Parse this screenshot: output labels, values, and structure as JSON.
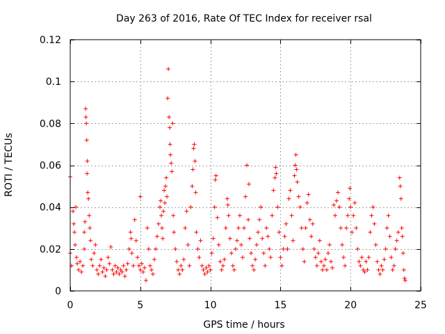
{
  "chart_data": {
    "type": "scatter",
    "title": "Day 263 of 2016, Rate Of TEC Index for receiver rsal",
    "xlabel": "GPS time / hours",
    "ylabel": "ROTI / TECUs",
    "xlim": [
      0,
      25
    ],
    "ylim": [
      0,
      0.12
    ],
    "x_ticks": [
      0,
      5,
      10,
      15,
      20,
      25
    ],
    "x_tick_labels": [
      "0",
      "5",
      "10",
      "15",
      "20",
      "25"
    ],
    "y_ticks": [
      0,
      0.02,
      0.04,
      0.06,
      0.08,
      0.1,
      0.12
    ],
    "y_tick_labels": [
      "0",
      "0.02",
      "0.04",
      "0.06",
      "0.08",
      "0.1",
      "0.12"
    ],
    "grid": true,
    "legend": "none",
    "marker": "plus",
    "series_color": "#ff0000",
    "series": [
      {
        "name": "ROTI",
        "points": [
          [
            0.0,
            0.0545
          ],
          [
            0.0,
            0.018
          ],
          [
            0.1,
            0.012
          ],
          [
            0.2,
            0.038
          ],
          [
            0.25,
            0.032
          ],
          [
            0.3,
            0.028
          ],
          [
            0.35,
            0.022
          ],
          [
            0.4,
            0.04
          ],
          [
            0.45,
            0.016
          ],
          [
            0.5,
            0.013
          ],
          [
            0.6,
            0.01
          ],
          [
            0.7,
            0.014
          ],
          [
            0.8,
            0.009
          ],
          [
            0.9,
            0.012
          ],
          [
            1.0,
            0.02
          ],
          [
            1.0,
            0.028
          ],
          [
            1.05,
            0.033
          ],
          [
            1.1,
            0.087
          ],
          [
            1.12,
            0.083
          ],
          [
            1.15,
            0.08
          ],
          [
            1.18,
            0.072
          ],
          [
            1.2,
            0.056
          ],
          [
            1.22,
            0.062
          ],
          [
            1.25,
            0.047
          ],
          [
            1.3,
            0.044
          ],
          [
            1.35,
            0.036
          ],
          [
            1.4,
            0.03
          ],
          [
            1.45,
            0.024
          ],
          [
            1.5,
            0.015
          ],
          [
            1.6,
            0.012
          ],
          [
            1.7,
            0.018
          ],
          [
            1.8,
            0.022
          ],
          [
            1.9,
            0.01
          ],
          [
            2.0,
            0.008
          ],
          [
            2.1,
            0.012
          ],
          [
            2.2,
            0.015
          ],
          [
            2.3,
            0.009
          ],
          [
            2.4,
            0.011
          ],
          [
            2.5,
            0.007
          ],
          [
            2.6,
            0.01
          ],
          [
            2.7,
            0.016
          ],
          [
            2.8,
            0.013
          ],
          [
            2.9,
            0.021
          ],
          [
            3.0,
            0.01
          ],
          [
            3.1,
            0.008
          ],
          [
            3.2,
            0.012
          ],
          [
            3.3,
            0.009
          ],
          [
            3.4,
            0.011
          ],
          [
            3.5,
            0.008
          ],
          [
            3.6,
            0.01
          ],
          [
            3.7,
            0.009
          ],
          [
            3.8,
            0.012
          ],
          [
            3.9,
            0.007
          ],
          [
            4.0,
            0.01
          ],
          [
            4.1,
            0.013
          ],
          [
            4.2,
            0.02
          ],
          [
            4.3,
            0.028
          ],
          [
            4.35,
            0.025
          ],
          [
            4.4,
            0.018
          ],
          [
            4.5,
            0.012
          ],
          [
            4.6,
            0.034
          ],
          [
            4.7,
            0.024
          ],
          [
            4.8,
            0.016
          ],
          [
            4.9,
            0.012
          ],
          [
            5.0,
            0.01
          ],
          [
            5.0,
            0.045
          ],
          [
            5.1,
            0.013
          ],
          [
            5.2,
            0.009
          ],
          [
            5.3,
            0.011
          ],
          [
            5.4,
            0.005
          ],
          [
            5.5,
            0.03
          ],
          [
            5.6,
            0.02
          ],
          [
            5.7,
            0.012
          ],
          [
            5.8,
            0.01
          ],
          [
            5.9,
            0.008
          ],
          [
            6.0,
            0.015
          ],
          [
            6.1,
            0.02
          ],
          [
            6.2,
            0.026
          ],
          [
            6.3,
            0.032
          ],
          [
            6.4,
            0.04
          ],
          [
            6.45,
            0.043
          ],
          [
            6.5,
            0.036
          ],
          [
            6.55,
            0.03
          ],
          [
            6.6,
            0.025
          ],
          [
            6.65,
            0.038
          ],
          [
            6.7,
            0.048
          ],
          [
            6.75,
            0.042
          ],
          [
            6.8,
            0.05
          ],
          [
            6.85,
            0.054
          ],
          [
            6.9,
            0.045
          ],
          [
            6.95,
            0.092
          ],
          [
            7.0,
            0.106
          ],
          [
            7.05,
            0.083
          ],
          [
            7.1,
            0.078
          ],
          [
            7.12,
            0.07
          ],
          [
            7.15,
            0.065
          ],
          [
            7.2,
            0.061
          ],
          [
            7.25,
            0.057
          ],
          [
            7.3,
            0.08
          ],
          [
            7.35,
            0.036
          ],
          [
            7.4,
            0.028
          ],
          [
            7.5,
            0.02
          ],
          [
            7.6,
            0.014
          ],
          [
            7.7,
            0.01
          ],
          [
            7.8,
            0.008
          ],
          [
            7.9,
            0.012
          ],
          [
            8.0,
            0.01
          ],
          [
            8.1,
            0.015
          ],
          [
            8.2,
            0.03
          ],
          [
            8.3,
            0.038
          ],
          [
            8.4,
            0.022
          ],
          [
            8.5,
            0.012
          ],
          [
            8.6,
            0.04
          ],
          [
            8.7,
            0.05
          ],
          [
            8.75,
            0.058
          ],
          [
            8.8,
            0.068
          ],
          [
            8.85,
            0.07
          ],
          [
            8.9,
            0.062
          ],
          [
            8.95,
            0.047
          ],
          [
            9.0,
            0.028
          ],
          [
            9.1,
            0.02
          ],
          [
            9.2,
            0.016
          ],
          [
            9.3,
            0.024
          ],
          [
            9.4,
            0.012
          ],
          [
            9.5,
            0.01
          ],
          [
            9.6,
            0.008
          ],
          [
            9.7,
            0.011
          ],
          [
            9.8,
            0.009
          ],
          [
            9.9,
            0.012
          ],
          [
            10.0,
            0.01
          ],
          [
            10.1,
            0.018
          ],
          [
            10.2,
            0.025
          ],
          [
            10.3,
            0.04
          ],
          [
            10.35,
            0.053
          ],
          [
            10.4,
            0.055
          ],
          [
            10.5,
            0.035
          ],
          [
            10.6,
            0.022
          ],
          [
            10.7,
            0.014
          ],
          [
            10.8,
            0.01
          ],
          [
            10.9,
            0.012
          ],
          [
            11.0,
            0.015
          ],
          [
            11.1,
            0.03
          ],
          [
            11.2,
            0.044
          ],
          [
            11.25,
            0.041
          ],
          [
            11.3,
            0.036
          ],
          [
            11.4,
            0.025
          ],
          [
            11.5,
            0.018
          ],
          [
            11.6,
            0.012
          ],
          [
            11.7,
            0.01
          ],
          [
            11.8,
            0.02
          ],
          [
            11.9,
            0.024
          ],
          [
            12.0,
            0.03
          ],
          [
            12.1,
            0.036
          ],
          [
            12.2,
            0.022
          ],
          [
            12.3,
            0.016
          ],
          [
            12.4,
            0.03
          ],
          [
            12.5,
            0.045
          ],
          [
            12.6,
            0.06
          ],
          [
            12.7,
            0.034
          ],
          [
            12.75,
            0.051
          ],
          [
            12.8,
            0.025
          ],
          [
            12.9,
            0.018
          ],
          [
            13.0,
            0.012
          ],
          [
            13.1,
            0.01
          ],
          [
            13.2,
            0.015
          ],
          [
            13.3,
            0.022
          ],
          [
            13.4,
            0.028
          ],
          [
            13.5,
            0.034
          ],
          [
            13.6,
            0.04
          ],
          [
            13.7,
            0.025
          ],
          [
            13.8,
            0.018
          ],
          [
            13.9,
            0.012
          ],
          [
            14.0,
            0.03
          ],
          [
            14.1,
            0.026
          ],
          [
            14.2,
            0.02
          ],
          [
            14.3,
            0.016
          ],
          [
            14.4,
            0.036
          ],
          [
            14.5,
            0.048
          ],
          [
            14.6,
            0.054
          ],
          [
            14.65,
            0.059
          ],
          [
            14.7,
            0.056
          ],
          [
            14.8,
            0.04
          ],
          [
            14.9,
            0.028
          ],
          [
            15.0,
            0.016
          ],
          [
            15.1,
            0.012
          ],
          [
            15.2,
            0.02
          ],
          [
            15.3,
            0.026
          ],
          [
            15.4,
            0.032
          ],
          [
            15.5,
            0.02
          ],
          [
            15.6,
            0.044
          ],
          [
            15.7,
            0.048
          ],
          [
            15.8,
            0.036
          ],
          [
            15.9,
            0.024
          ],
          [
            16.0,
            0.055
          ],
          [
            16.05,
            0.06
          ],
          [
            16.1,
            0.065
          ],
          [
            16.15,
            0.058
          ],
          [
            16.2,
            0.052
          ],
          [
            16.3,
            0.045
          ],
          [
            16.4,
            0.04
          ],
          [
            16.5,
            0.03
          ],
          [
            16.6,
            0.02
          ],
          [
            16.7,
            0.014
          ],
          [
            16.8,
            0.03
          ],
          [
            16.9,
            0.042
          ],
          [
            17.0,
            0.046
          ],
          [
            17.1,
            0.034
          ],
          [
            17.2,
            0.026
          ],
          [
            17.3,
            0.032
          ],
          [
            17.4,
            0.02
          ],
          [
            17.5,
            0.016
          ],
          [
            17.6,
            0.012
          ],
          [
            17.7,
            0.018
          ],
          [
            17.8,
            0.024
          ],
          [
            17.9,
            0.014
          ],
          [
            18.0,
            0.01
          ],
          [
            18.1,
            0.012
          ],
          [
            18.2,
            0.015
          ],
          [
            18.3,
            0.01
          ],
          [
            18.4,
            0.018
          ],
          [
            18.5,
            0.022
          ],
          [
            18.6,
            0.014
          ],
          [
            18.7,
            0.011
          ],
          [
            18.8,
            0.041
          ],
          [
            18.9,
            0.036
          ],
          [
            19.0,
            0.043
          ],
          [
            19.1,
            0.047
          ],
          [
            19.2,
            0.04
          ],
          [
            19.3,
            0.03
          ],
          [
            19.4,
            0.022
          ],
          [
            19.5,
            0.016
          ],
          [
            19.6,
            0.012
          ],
          [
            19.7,
            0.03
          ],
          [
            19.8,
            0.036
          ],
          [
            19.9,
            0.044
          ],
          [
            19.95,
            0.049
          ],
          [
            20.0,
            0.04
          ],
          [
            20.1,
            0.028
          ],
          [
            20.2,
            0.036
          ],
          [
            20.3,
            0.042
          ],
          [
            20.4,
            0.03
          ],
          [
            20.5,
            0.02
          ],
          [
            20.6,
            0.014
          ],
          [
            20.7,
            0.012
          ],
          [
            20.8,
            0.016
          ],
          [
            20.9,
            0.01
          ],
          [
            21.0,
            0.009
          ],
          [
            21.1,
            0.014
          ],
          [
            21.2,
            0.01
          ],
          [
            21.3,
            0.016
          ],
          [
            21.4,
            0.028
          ],
          [
            21.5,
            0.036
          ],
          [
            21.6,
            0.04
          ],
          [
            21.7,
            0.032
          ],
          [
            21.8,
            0.022
          ],
          [
            21.9,
            0.014
          ],
          [
            22.0,
            0.01
          ],
          [
            22.1,
            0.008
          ],
          [
            22.2,
            0.012
          ],
          [
            22.3,
            0.01
          ],
          [
            22.4,
            0.015
          ],
          [
            22.5,
            0.02
          ],
          [
            22.6,
            0.03
          ],
          [
            22.7,
            0.036
          ],
          [
            22.8,
            0.026
          ],
          [
            22.9,
            0.016
          ],
          [
            23.0,
            0.01
          ],
          [
            23.1,
            0.012
          ],
          [
            23.2,
            0.02
          ],
          [
            23.3,
            0.024
          ],
          [
            23.4,
            0.028
          ],
          [
            23.5,
            0.054
          ],
          [
            23.55,
            0.05
          ],
          [
            23.6,
            0.044
          ],
          [
            23.65,
            0.03
          ],
          [
            23.7,
            0.026
          ],
          [
            23.75,
            0.018
          ],
          [
            23.8,
            0.01
          ],
          [
            23.85,
            0.006
          ],
          [
            23.9,
            0.005
          ]
        ]
      }
    ]
  }
}
